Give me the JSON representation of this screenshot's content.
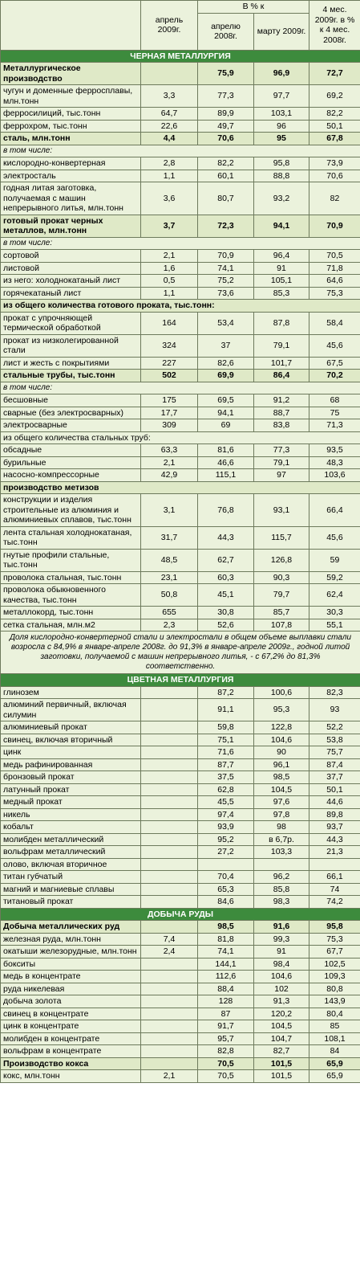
{
  "header": {
    "col_april": "апрель 2009г.",
    "group": "В % к",
    "sub": [
      "апрелю 2008г.",
      "марту 2009г."
    ],
    "col_4m": "4 мес. 2009г. в % к 4 мес. 2008г."
  },
  "sections": [
    {
      "title": "ЧЕРНАЯ МЕТАЛЛУРГИЯ",
      "rows": [
        [
          "Металлургическое производство",
          null,
          "75,9",
          "96,9",
          "72,7"
        ],
        [
          "чугун и доменные ферросплавы, млн.тонн",
          "3,3",
          "77,3",
          "97,7",
          "69,2"
        ],
        [
          "ферросилиций, тыс.тонн",
          "64,7",
          "89,9",
          "103,1",
          "82,2"
        ],
        [
          "феррохром, тыс.тонн",
          "22,6",
          "49,7",
          "96",
          "50,1"
        ],
        [
          "сталь, млн.тонн",
          "4,4",
          "70,6",
          "95",
          "67,8"
        ],
        [
          "в том числе:"
        ],
        [
          "кислородно-конвертерная",
          "2,8",
          "82,2",
          "95,8",
          "73,9"
        ],
        [
          "электросталь",
          "1,1",
          "60,1",
          "88,8",
          "70,6"
        ],
        [
          "годная литая заготовка, получаемая с машин непрерывного литья, млн.тонн",
          "3,6",
          "80,7",
          "93,2",
          "82"
        ],
        [
          "готовый прокат черных металлов, млн.тонн",
          "3,7",
          "72,3",
          "94,1",
          "70,9"
        ],
        [
          "в том числе:"
        ],
        [
          "сортовой",
          "2,1",
          "70,9",
          "96,4",
          "70,5"
        ],
        [
          "листовой",
          "1,6",
          "74,1",
          "91",
          "71,8"
        ],
        [
          "из него: холоднокатаный лист",
          "0,5",
          "75,2",
          "105,1",
          "64,6"
        ],
        [
          "горячекатаный лист",
          "1,1",
          "73,6",
          "85,3",
          "75,3"
        ],
        [
          "из общего количества готового проката, тыс.тонн:"
        ],
        [
          "прокат с упрочняющей термической обработкой",
          "164",
          "53,4",
          "87,8",
          "58,4"
        ],
        [
          "прокат из низколегированной стали",
          "324",
          "37",
          "79,1",
          "45,6"
        ],
        [
          "лист и жесть с покрытиями",
          "227",
          "82,6",
          "101,7",
          "67,5"
        ],
        [
          "стальные трубы, тыс.тонн",
          "502",
          "69,9",
          "86,4",
          "70,2"
        ],
        [
          "в том числе:"
        ],
        [
          "бесшовные",
          "175",
          "69,5",
          "91,2",
          "68"
        ],
        [
          "сварные (без электросварных)",
          "17,7",
          "94,1",
          "88,7",
          "75"
        ],
        [
          "электросварные",
          "309",
          "69",
          "83,8",
          "71,3"
        ],
        [
          "из общего количества стальных труб:"
        ],
        [
          "обсадные",
          "63,3",
          "81,6",
          "77,3",
          "93,5"
        ],
        [
          "бурильные",
          "2,1",
          "46,6",
          "79,1",
          "48,3"
        ],
        [
          "насосно-компрессорные",
          "42,9",
          "115,1",
          "97",
          "103,6"
        ],
        [
          "производство метизов"
        ],
        [
          "конструкции и изделия строительные из алюминия и алюминиевых сплавов, тыс.тонн",
          "3,1",
          "76,8",
          "93,1",
          "66,4"
        ],
        [
          "лента стальная холоднокатаная, тыс.тонн",
          "31,7",
          "44,3",
          "115,7",
          "45,6"
        ],
        [
          "гнутые профили стальные, тыс.тонн",
          "48,5",
          "62,7",
          "126,8",
          "59"
        ],
        [
          "проволока стальная, тыс.тонн",
          "23,1",
          "60,3",
          "90,3",
          "59,2"
        ],
        [
          "проволока обыкновенного качества, тыс.тонн",
          "50,8",
          "45,1",
          "79,7",
          "62,4"
        ],
        [
          "металлокорд, тыс.тонн",
          "655",
          "30,8",
          "85,7",
          "30,3"
        ],
        [
          "сетка стальная, млн.м2",
          "2,3",
          "52,6",
          "107,8",
          "55,1"
        ]
      ],
      "note": "Доля кислородно-конвертерной стали и электростали в общем объеме выплавки стали возросла с 84,9% в январе-апреле 2008г. до 91,3% в январе-апреле 2009г., годной литой заготовки, получаемой с машин непрерывного литья, - с 67,2% до 81,3% соответственно."
    },
    {
      "title": "ЦВЕТНАЯ МЕТАЛЛУРГИЯ",
      "rows": [
        [
          "глинозем",
          null,
          "87,2",
          "100,6",
          "82,3"
        ],
        [
          "алюминий первичный, включая силумин",
          null,
          "91,1",
          "95,3",
          "93"
        ],
        [
          "алюминиевый прокат",
          null,
          "59,8",
          "122,8",
          "52,2"
        ],
        [
          "свинец, включая вторичный",
          null,
          "75,1",
          "104,6",
          "53,8"
        ],
        [
          "цинк",
          null,
          "71,6",
          "90",
          "75,7"
        ],
        [
          "медь рафинированная",
          null,
          "87,7",
          "96,1",
          "87,4"
        ],
        [
          "бронзовый прокат",
          null,
          "37,5",
          "98,5",
          "37,7"
        ],
        [
          "латунный прокат",
          null,
          "62,8",
          "104,5",
          "50,1"
        ],
        [
          "медный прокат",
          null,
          "45,5",
          "97,6",
          "44,6"
        ],
        [
          "никель",
          null,
          "97,4",
          "97,8",
          "89,8"
        ],
        [
          "кобальт",
          null,
          "93,9",
          "98",
          "93,7"
        ],
        [
          "молибден металлический",
          null,
          "95,2",
          "в 6,7р.",
          "44,3"
        ],
        [
          "вольфрам металлический",
          null,
          "27,2",
          "103,3",
          "21,3"
        ],
        [
          "олово, включая вторичное",
          null,
          null,
          null,
          null
        ],
        [
          "титан губчатый",
          null,
          "70,4",
          "96,2",
          "66,1"
        ],
        [
          "магний и магниевые сплавы",
          null,
          "65,3",
          "85,8",
          "74"
        ],
        [
          "титановый прокат",
          null,
          "84,6",
          "98,3",
          "74,2"
        ]
      ]
    },
    {
      "title": "ДОБЫЧА РУДЫ",
      "rows": [
        [
          "Добыча металлических руд",
          null,
          "98,5",
          "91,6",
          "95,8"
        ],
        [
          "железная руда, млн.тонн",
          "7,4",
          "81,8",
          "99,3",
          "75,3"
        ],
        [
          "окатыши железорудные, млн.тонн",
          "2,4",
          "74,1",
          "91",
          "67,7"
        ],
        [
          "бокситы",
          null,
          "144,1",
          "98,4",
          "102,5"
        ],
        [
          "медь в концентрате",
          null,
          "112,6",
          "104,6",
          "109,3"
        ],
        [
          "руда никелевая",
          null,
          "88,4",
          "102",
          "80,8"
        ],
        [
          "добыча золота",
          null,
          "128",
          "91,3",
          "143,9"
        ],
        [
          "свинец в концентрате",
          null,
          "87",
          "120,2",
          "80,4"
        ],
        [
          "цинк в концентрате",
          null,
          "91,7",
          "104,5",
          "85"
        ],
        [
          "молибден в концентрате",
          null,
          "95,7",
          "104,7",
          "108,1"
        ],
        [
          "вольфрам в концентрате",
          null,
          "82,8",
          "82,7",
          "84"
        ],
        [
          "Производство кокса",
          null,
          "70,5",
          "101,5",
          "65,9"
        ],
        [
          "кокс, млн.тонн",
          "2,1",
          "70,5",
          "101,5",
          "65,9"
        ]
      ]
    }
  ]
}
